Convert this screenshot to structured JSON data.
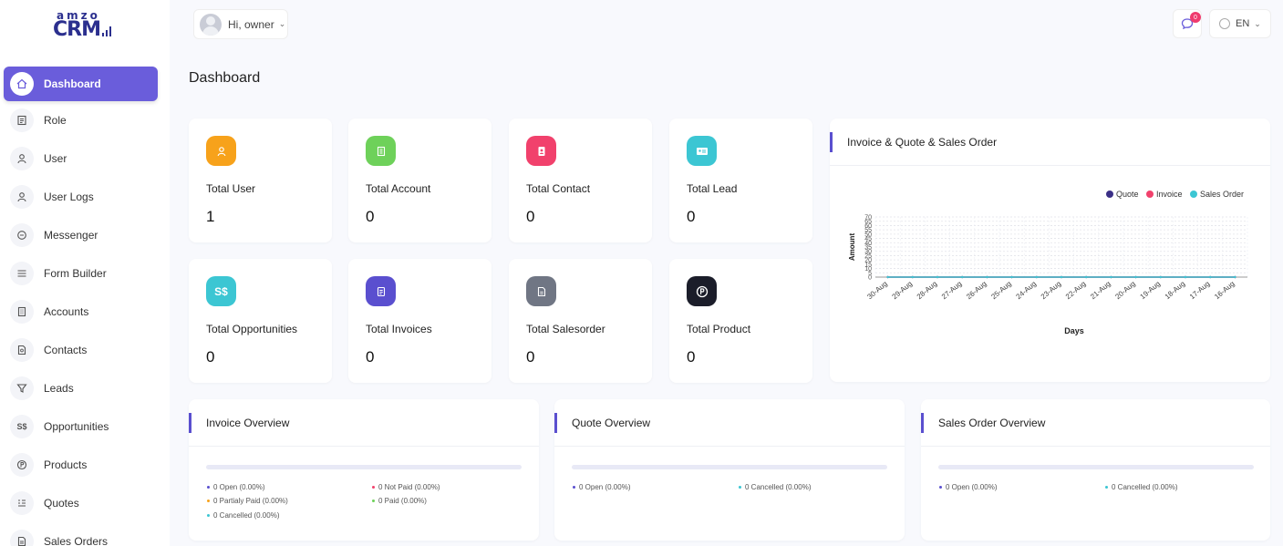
{
  "brand": {
    "top": "amzo",
    "name": "CRM"
  },
  "header": {
    "greeting": "Hi, owner",
    "messages_badge": "0",
    "language": "EN"
  },
  "sidebar": {
    "items": [
      {
        "label": "Dashboard",
        "icon": "home-icon",
        "active": true
      },
      {
        "label": "Role",
        "icon": "role-icon"
      },
      {
        "label": "User",
        "icon": "user-icon"
      },
      {
        "label": "User Logs",
        "icon": "user-icon"
      },
      {
        "label": "Messenger",
        "icon": "chat-icon"
      },
      {
        "label": "Form Builder",
        "icon": "menu-icon"
      },
      {
        "label": "Accounts",
        "icon": "building-icon"
      },
      {
        "label": "Contacts",
        "icon": "contact-icon"
      },
      {
        "label": "Leads",
        "icon": "filter-icon"
      },
      {
        "label": "Opportunities",
        "icon": "dollar-icon"
      },
      {
        "label": "Products",
        "icon": "product-icon"
      },
      {
        "label": "Quotes",
        "icon": "quote-icon"
      },
      {
        "label": "Sales Orders",
        "icon": "document-icon"
      }
    ]
  },
  "page": {
    "title": "Dashboard"
  },
  "stats": [
    {
      "label": "Total User",
      "value": "1",
      "color": "#f7a21b",
      "glyph": "👤"
    },
    {
      "label": "Total Account",
      "value": "0",
      "color": "#6ed15a",
      "glyph": "▦"
    },
    {
      "label": "Total Contact",
      "value": "0",
      "color": "#f1416c",
      "glyph": "▣"
    },
    {
      "label": "Total Lead",
      "value": "0",
      "color": "#3cc6d3",
      "glyph": "▤"
    },
    {
      "label": "Total Opportunities",
      "value": "0",
      "color": "#3cc6d3",
      "glyph": "S$"
    },
    {
      "label": "Total Invoices",
      "value": "0",
      "color": "#5a4fcf",
      "glyph": "▤"
    },
    {
      "label": "Total Salesorder",
      "value": "0",
      "color": "#707684",
      "glyph": "▤"
    },
    {
      "label": "Total Product",
      "value": "0",
      "color": "#1b1d2a",
      "glyph": "P"
    }
  ],
  "chart_panel": {
    "title": "Invoice & Quote & Sales Order"
  },
  "chart_data": {
    "type": "line",
    "xlabel": "Days",
    "ylabel": "Amount",
    "x": [
      "30-Aug",
      "29-Aug",
      "28-Aug",
      "27-Aug",
      "26-Aug",
      "25-Aug",
      "24-Aug",
      "23-Aug",
      "22-Aug",
      "21-Aug",
      "20-Aug",
      "19-Aug",
      "18-Aug",
      "17-Aug",
      "16-Aug"
    ],
    "y_ticks": [
      70,
      65,
      60,
      55,
      50,
      45,
      40,
      35,
      30,
      25,
      20,
      15,
      10,
      5,
      0
    ],
    "ylim": [
      0,
      70
    ],
    "grid": true,
    "legend_position": "top-right",
    "series": [
      {
        "name": "Quote",
        "color": "#3b2f86",
        "values": [
          0,
          0,
          0,
          0,
          0,
          0,
          0,
          0,
          0,
          0,
          0,
          0,
          0,
          0,
          0
        ]
      },
      {
        "name": "Invoice",
        "color": "#f1416c",
        "values": [
          0,
          0,
          0,
          0,
          0,
          0,
          0,
          0,
          0,
          0,
          0,
          0,
          0,
          0,
          0
        ]
      },
      {
        "name": "Sales Order",
        "color": "#3cc6d3",
        "values": [
          0,
          0,
          0,
          0,
          0,
          0,
          0,
          0,
          0,
          0,
          0,
          0,
          0,
          0,
          0
        ]
      }
    ]
  },
  "invoice_overview": {
    "title": "Invoice Overview",
    "legend": [
      {
        "text": "0 Open (0.00%)",
        "color": "#5a4fcf"
      },
      {
        "text": "0 Not Paid (0.00%)",
        "color": "#f1416c"
      },
      {
        "text": "0 Partialy Paid (0.00%)",
        "color": "#f7a21b"
      },
      {
        "text": "0 Paid (0.00%)",
        "color": "#6ed15a"
      },
      {
        "text": "0 Cancelled (0.00%)",
        "color": "#3cc6d3"
      }
    ]
  },
  "quote_overview": {
    "title": "Quote Overview",
    "legend": [
      {
        "text": "0 Open (0.00%)",
        "color": "#5a4fcf"
      },
      {
        "text": "0 Cancelled (0.00%)",
        "color": "#3cc6d3"
      }
    ]
  },
  "salesorder_overview": {
    "title": "Sales Order Overview",
    "legend": [
      {
        "text": "0 Open (0.00%)",
        "color": "#5a4fcf"
      },
      {
        "text": "0 Cancelled (0.00%)",
        "color": "#3cc6d3"
      }
    ]
  }
}
